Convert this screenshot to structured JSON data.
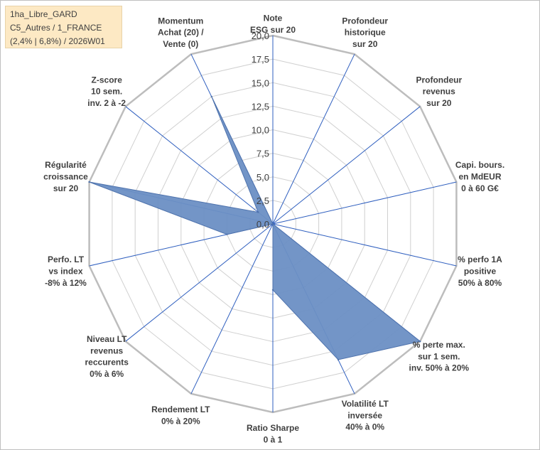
{
  "info_box": {
    "line1": "1ha_Libre_GARD",
    "line2": "C5_Autres / 1_FRANCE",
    "line3": "(2,4% | 6,8%) / 2026W01"
  },
  "colors": {
    "fill": "#6b8fc4",
    "fill_stroke": "#4f73ad",
    "spoke": "#2f5fbf",
    "grid": "#d0d0d0",
    "outer_ring": "#bdbdbd"
  },
  "chart_data": {
    "type": "radar",
    "rmin": 0,
    "rmax": 20,
    "tick_step": 2.5,
    "tick_labels": [
      "0,0",
      "2,5",
      "5,0",
      "7,5",
      "10,0",
      "12,5",
      "15,0",
      "17,5",
      "20,0"
    ],
    "axes": [
      [
        "Note",
        "ESG sur 20"
      ],
      [
        "Profondeur",
        "historique",
        "sur 20"
      ],
      [
        "Profondeur",
        "revenus",
        "sur 20"
      ],
      [
        "Capi. bours.",
        "en MdEUR",
        "0 à 60 G€"
      ],
      [
        "% perfo 1A",
        "positive",
        "50% à 80%"
      ],
      [
        "% perte max.",
        "sur 1 sem.",
        "inv. 50% à 20%"
      ],
      [
        "Volatilité LT",
        "inversée",
        "40% à 0%"
      ],
      [
        "Ratio Sharpe",
        "0 à 1"
      ],
      [
        "Rendement LT",
        "0% à 20%"
      ],
      [
        "Niveau LT",
        "revenus",
        "reccurents",
        "0% à 6%"
      ],
      [
        "Perfo. LT",
        "vs index",
        "-8% à 12%"
      ],
      [
        "Régularité",
        "croissance",
        "sur 20"
      ],
      [
        "Z-score",
        "10 sem.",
        "inv. 2 à -2"
      ],
      [
        "Momentum",
        "Achat (20) /",
        "Vente (0)"
      ]
    ],
    "values": [
      0,
      0,
      0,
      0,
      0,
      20,
      16,
      7,
      0,
      0,
      5,
      20,
      2,
      15
    ],
    "grid": true,
    "legend": "none"
  }
}
